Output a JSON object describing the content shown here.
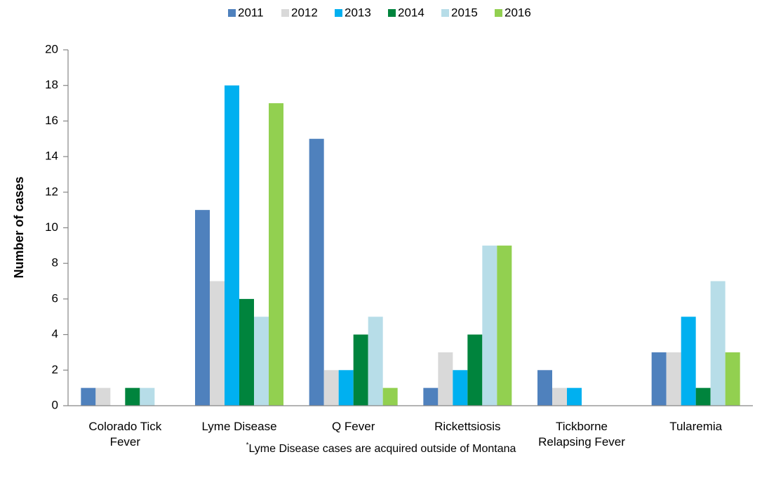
{
  "chart_data": {
    "type": "bar",
    "y_label": "Number of cases",
    "categories": [
      "Colorado Tick Fever",
      "Lyme Disease",
      "Q Fever",
      "Rickettsiosis",
      "Tickborne Relapsing Fever",
      "Tularemia"
    ],
    "series": [
      {
        "name": "2011",
        "color": "#4f81bd",
        "values": [
          1,
          11,
          15,
          1,
          2,
          3
        ]
      },
      {
        "name": "2012",
        "color": "#d9d9d9",
        "values": [
          1,
          7,
          2,
          3,
          1,
          3
        ]
      },
      {
        "name": "2013",
        "color": "#00b0f0",
        "values": [
          0,
          18,
          2,
          2,
          1,
          5
        ]
      },
      {
        "name": "2014",
        "color": "#00843d",
        "values": [
          1,
          6,
          4,
          4,
          0,
          1
        ]
      },
      {
        "name": "2015",
        "color": "#b7dde8",
        "values": [
          1,
          5,
          5,
          9,
          0,
          7
        ]
      },
      {
        "name": "2016",
        "color": "#92d050",
        "values": [
          0,
          17,
          1,
          9,
          0,
          3
        ]
      }
    ],
    "ylim": [
      0,
      20
    ],
    "yticks": [
      0,
      2,
      4,
      6,
      8,
      10,
      12,
      14,
      16,
      18,
      20
    ],
    "grid": false,
    "legend": "top",
    "footnote_marker": "*",
    "footnote": "Lyme Disease cases are acquired outside of Montana"
  }
}
